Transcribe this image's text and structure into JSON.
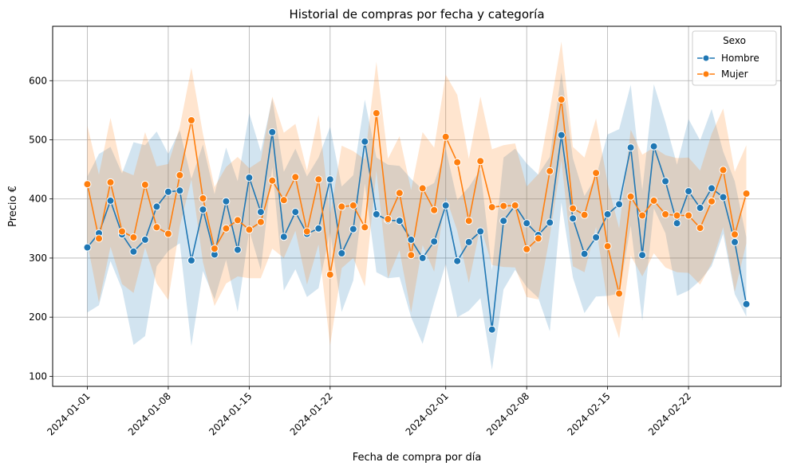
{
  "chart_data": {
    "type": "line",
    "title": "Historial de compras por fecha y categoría",
    "xlabel": "Fecha de compra por día",
    "ylabel": "Precio €",
    "xlim": [
      "2023-12-29",
      "2024-03-01"
    ],
    "ylim": [
      83,
      692
    ],
    "x_ticks": [
      "2024-01-01",
      "2024-01-08",
      "2024-01-15",
      "2024-01-22",
      "2024-02-01",
      "2024-02-08",
      "2024-02-15",
      "2024-02-22"
    ],
    "y_ticks": [
      100,
      200,
      300,
      400,
      500,
      600
    ],
    "grid": true,
    "legend": {
      "title": "Sexo",
      "position": "top-right"
    },
    "series": [
      {
        "name": "Hombre",
        "color": "#1f77b4",
        "start_date": "2024-01-01",
        "values": [
          318,
          342,
          397,
          340,
          311,
          331,
          387,
          412,
          414,
          296,
          382,
          306,
          396,
          314,
          436,
          378,
          513,
          336,
          378,
          341,
          350,
          433,
          308,
          349,
          497,
          374,
          364,
          363,
          331,
          300,
          328,
          389,
          295,
          327,
          345,
          179,
          363,
          389,
          359,
          339,
          360,
          508,
          367,
          307,
          335,
          374,
          391,
          487,
          305,
          489,
          430,
          359,
          413,
          385,
          418,
          403,
          327,
          222
        ],
        "ci_upper": [
          438,
          476,
          488,
          443,
          496,
          491,
          514,
          476,
          516,
          434,
          492,
          408,
          487,
          430,
          545,
          480,
          570,
          446,
          485,
          438,
          470,
          522,
          421,
          440,
          568,
          470,
          458,
          456,
          434,
          416,
          427,
          485,
          398,
          420,
          450,
          279,
          470,
          485,
          460,
          441,
          471,
          614,
          469,
          405,
          437,
          509,
          518,
          593,
          414,
          594,
          530,
          458,
          535,
          499,
          552,
          480,
          430,
          335
        ],
        "ci_lower": [
          208,
          220,
          295,
          247,
          153,
          168,
          286,
          312,
          325,
          151,
          278,
          230,
          297,
          209,
          347,
          280,
          454,
          245,
          281,
          234,
          249,
          345,
          209,
          262,
          426,
          276,
          266,
          268,
          200,
          155,
          224,
          290,
          200,
          211,
          232,
          111,
          247,
          280,
          251,
          233,
          176,
          394,
          267,
          207,
          235,
          236,
          240,
          355,
          194,
          384,
          342,
          236,
          245,
          262,
          286,
          341,
          239,
          201
        ]
      },
      {
        "name": "Mujer",
        "color": "#ff7f0e",
        "start_date": "2024-01-01",
        "values": [
          425,
          333,
          428,
          345,
          335,
          424,
          352,
          341,
          440,
          533,
          401,
          316,
          350,
          364,
          348,
          361,
          431,
          398,
          437,
          345,
          433,
          272,
          387,
          389,
          352,
          545,
          366,
          410,
          305,
          418,
          381,
          505,
          462,
          363,
          464,
          386,
          388,
          389,
          315,
          333,
          447,
          568,
          384,
          373,
          444,
          320,
          240,
          404,
          372,
          397,
          374,
          372,
          372,
          351,
          396,
          449,
          340,
          409
        ],
        "ci_upper": [
          524,
          441,
          537,
          448,
          440,
          513,
          455,
          459,
          522,
          622,
          510,
          420,
          454,
          471,
          452,
          465,
          573,
          512,
          527,
          448,
          542,
          373,
          490,
          481,
          467,
          632,
          468,
          506,
          415,
          513,
          487,
          610,
          576,
          468,
          573,
          484,
          491,
          494,
          421,
          442,
          550,
          666,
          488,
          470,
          536,
          427,
          350,
          517,
          475,
          487,
          474,
          469,
          470,
          448,
          510,
          553,
          446,
          491
        ],
        "ci_lower": [
          325,
          225,
          319,
          256,
          241,
          318,
          257,
          229,
          354,
          433,
          293,
          219,
          257,
          269,
          266,
          266,
          316,
          300,
          346,
          255,
          323,
          152,
          283,
          300,
          252,
          448,
          266,
          313,
          208,
          322,
          277,
          404,
          346,
          258,
          354,
          288,
          285,
          284,
          234,
          230,
          337,
          465,
          286,
          276,
          353,
          223,
          164,
          304,
          269,
          308,
          284,
          276,
          275,
          255,
          291,
          352,
          243,
          325
        ]
      }
    ]
  }
}
